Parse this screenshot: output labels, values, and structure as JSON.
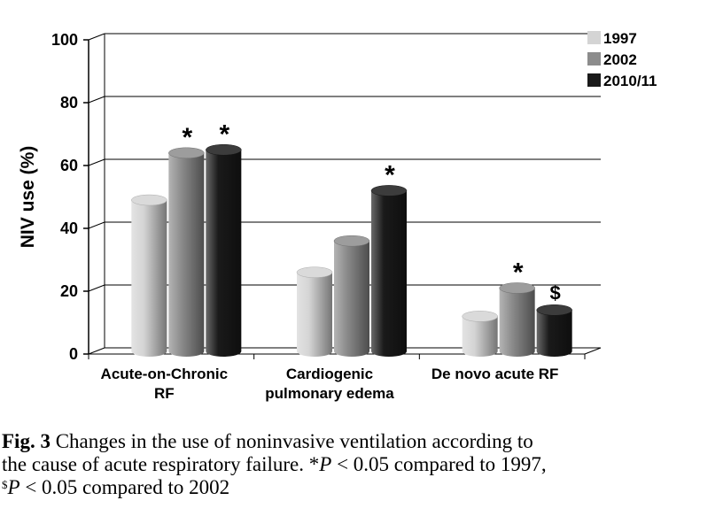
{
  "chart_data": {
    "type": "bar",
    "ylabel": "NIV use (%)",
    "ylim": [
      0,
      100
    ],
    "yticks": [
      0,
      20,
      40,
      60,
      80,
      100
    ],
    "grid": true,
    "legend_position": "top-right",
    "categories": [
      "Acute-on-Chronic RF",
      "Cardiogenic pulmonary edema",
      "De novo acute RF"
    ],
    "category_lines": [
      [
        "Acute-on-Chronic",
        "RF"
      ],
      [
        "Cardiogenic",
        "pulmonary edema"
      ],
      [
        "De novo acute RF"
      ]
    ],
    "series": [
      {
        "name": "1997",
        "values": [
          49,
          26,
          12
        ],
        "color": "#d4d4d4",
        "markers": [
          "",
          "",
          ""
        ]
      },
      {
        "name": "2002",
        "values": [
          64,
          36,
          21
        ],
        "color": "#8c8c8c",
        "markers": [
          "*",
          "",
          "*"
        ]
      },
      {
        "name": "2010/11",
        "values": [
          65,
          52,
          14
        ],
        "color": "#1a1a1a",
        "markers": [
          "*",
          "*",
          "$"
        ]
      }
    ]
  },
  "caption": {
    "fig_label": "Fig. 3",
    "line1_text": " Changes in the use of noninvasive ventilation according to",
    "line2_text": "the cause of acute respiratory failure. *",
    "p_symbol": "P",
    "line2_rest": " < 0.05 compared to 1997,",
    "dollar_sup": "$",
    "line3_rest": " < 0.05 compared to 2002"
  }
}
